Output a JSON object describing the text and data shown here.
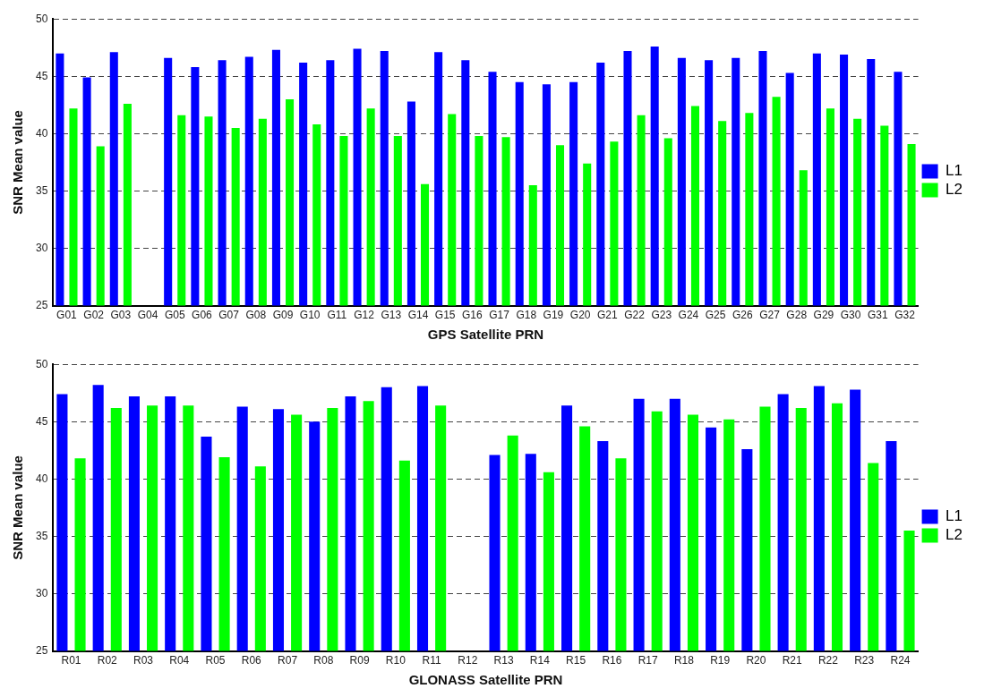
{
  "chart_data": [
    {
      "type": "bar",
      "xlabel": "GPS Satellite PRN",
      "ylabel": "SNR Mean value",
      "categories": [
        "G01",
        "G02",
        "G03",
        "G04",
        "G05",
        "G06",
        "G07",
        "G08",
        "G09",
        "G10",
        "G11",
        "G12",
        "G13",
        "G14",
        "G15",
        "G16",
        "G17",
        "G18",
        "G19",
        "G20",
        "G21",
        "G22",
        "G23",
        "G24",
        "G25",
        "G26",
        "G27",
        "G28",
        "G29",
        "G30",
        "G31",
        "G32"
      ],
      "series": [
        {
          "name": "L1",
          "color": "#0000ff",
          "values": [
            47.0,
            44.9,
            47.1,
            null,
            46.6,
            45.8,
            46.4,
            46.7,
            47.3,
            46.2,
            46.4,
            47.4,
            47.2,
            42.8,
            47.1,
            46.4,
            45.4,
            44.5,
            44.3,
            44.5,
            46.2,
            47.2,
            47.6,
            46.6,
            46.4,
            46.6,
            47.2,
            45.3,
            47.0,
            46.9,
            46.5,
            45.4
          ]
        },
        {
          "name": "L2",
          "color": "#00ff00",
          "values": [
            42.2,
            38.9,
            42.6,
            null,
            41.6,
            41.5,
            40.5,
            41.3,
            43.0,
            40.8,
            39.8,
            42.2,
            39.8,
            35.6,
            41.7,
            39.8,
            39.7,
            35.5,
            39.0,
            37.4,
            39.3,
            41.6,
            39.6,
            42.4,
            41.1,
            41.8,
            43.2,
            36.8,
            42.2,
            41.3,
            40.7,
            39.1
          ]
        }
      ],
      "ylim": [
        25,
        50
      ],
      "yticks": [
        25,
        30,
        35,
        40,
        45,
        50
      ],
      "grid": "y",
      "legend": "right"
    },
    {
      "type": "bar",
      "xlabel": "GLONASS Satellite PRN",
      "ylabel": "SNR Mean value",
      "categories": [
        "R01",
        "R02",
        "R03",
        "R04",
        "R05",
        "R06",
        "R07",
        "R08",
        "R09",
        "R10",
        "R11",
        "R12",
        "R13",
        "R14",
        "R15",
        "R16",
        "R17",
        "R18",
        "R19",
        "R20",
        "R21",
        "R22",
        "R23",
        "R24"
      ],
      "series": [
        {
          "name": "L1",
          "color": "#0000ff",
          "values": [
            47.4,
            48.2,
            47.2,
            47.2,
            43.7,
            46.3,
            46.1,
            45.0,
            47.2,
            48.0,
            48.1,
            null,
            42.1,
            42.2,
            46.4,
            43.3,
            47.0,
            47.0,
            44.5,
            42.6,
            47.4,
            48.1,
            47.8,
            43.3
          ]
        },
        {
          "name": "L2",
          "color": "#00ff00",
          "values": [
            41.8,
            46.2,
            46.4,
            46.4,
            41.9,
            41.1,
            45.6,
            46.2,
            46.8,
            41.6,
            46.4,
            null,
            43.8,
            40.6,
            44.6,
            41.8,
            45.9,
            45.6,
            45.2,
            46.3,
            46.2,
            46.6,
            41.4,
            35.5
          ]
        }
      ],
      "ylim": [
        25,
        50
      ],
      "yticks": [
        25,
        30,
        35,
        40,
        45,
        50
      ],
      "grid": "y",
      "legend": "right"
    }
  ]
}
